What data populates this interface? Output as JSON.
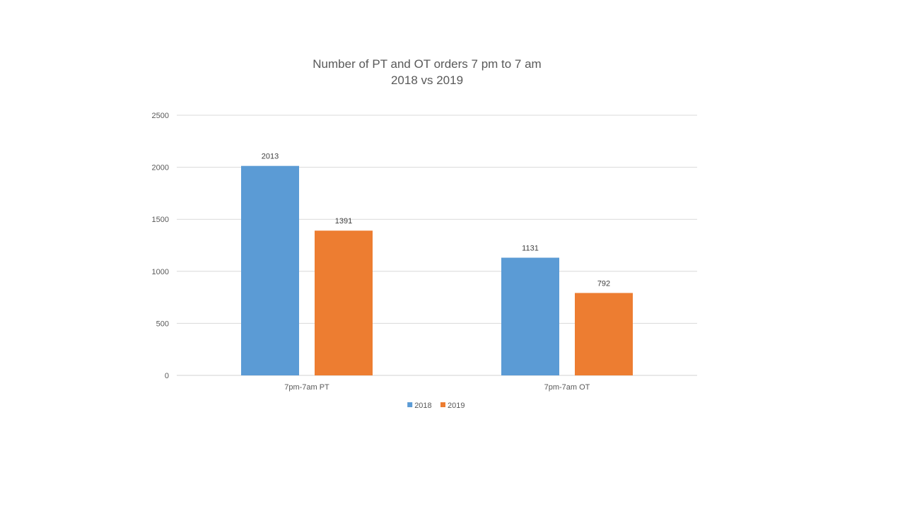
{
  "chart_data": {
    "type": "bar",
    "title": "Number of PT and OT orders 7 pm to 7 am",
    "subtitle": "2018 vs 2019",
    "categories": [
      "7pm-7am PT",
      "7pm-7am OT"
    ],
    "series": [
      {
        "name": "2018",
        "values": [
          2013,
          1131
        ],
        "color": "#5B9BD5"
      },
      {
        "name": "2019",
        "values": [
          1391,
          792
        ],
        "color": "#ED7D31"
      }
    ],
    "ylim": [
      0,
      2500
    ],
    "yticks": [
      0,
      500,
      1000,
      1500,
      2000,
      2500
    ],
    "grid": true,
    "data_labels": true,
    "legend": "bottom",
    "xlabel": "",
    "ylabel": ""
  }
}
